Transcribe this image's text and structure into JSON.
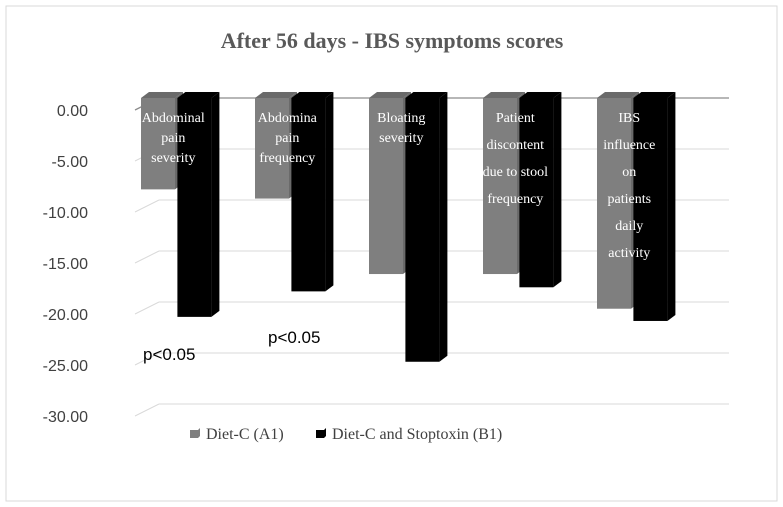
{
  "chart_data": {
    "type": "bar",
    "title": "After 56 days - IBS symptoms scores",
    "categories": [
      [
        "Abdominal",
        "pain",
        "severity"
      ],
      [
        "Abdomina",
        "pain",
        "frequency"
      ],
      [
        "Bloating",
        "severity"
      ],
      [
        "Patient",
        "discontent",
        "due to stool",
        "frequency"
      ],
      [
        "IBS",
        "influence",
        "on",
        "patients",
        "daily",
        "activity"
      ]
    ],
    "series": [
      {
        "name": "Diet-C (A1)",
        "color": "#7f7f7f",
        "side_color": "#6a6a6a",
        "values": [
          -7.9,
          -8.8,
          -16.2,
          -16.2,
          -19.6
        ]
      },
      {
        "name": "Diet-C and Stoptoxin (B1)",
        "color": "#000000",
        "side_color": "#000000",
        "values": [
          -20.4,
          -17.9,
          -24.8,
          -17.5,
          -20.8
        ]
      }
    ],
    "ylim": [
      -30,
      0
    ],
    "yticks": [
      "0.00",
      "-5.00",
      "-10.00",
      "-15.00",
      "-20.00",
      "-25.00",
      "-30.00"
    ],
    "annotations": [
      "p<0.05",
      "p<0.05"
    ],
    "grid": true,
    "legend": "bottom"
  }
}
